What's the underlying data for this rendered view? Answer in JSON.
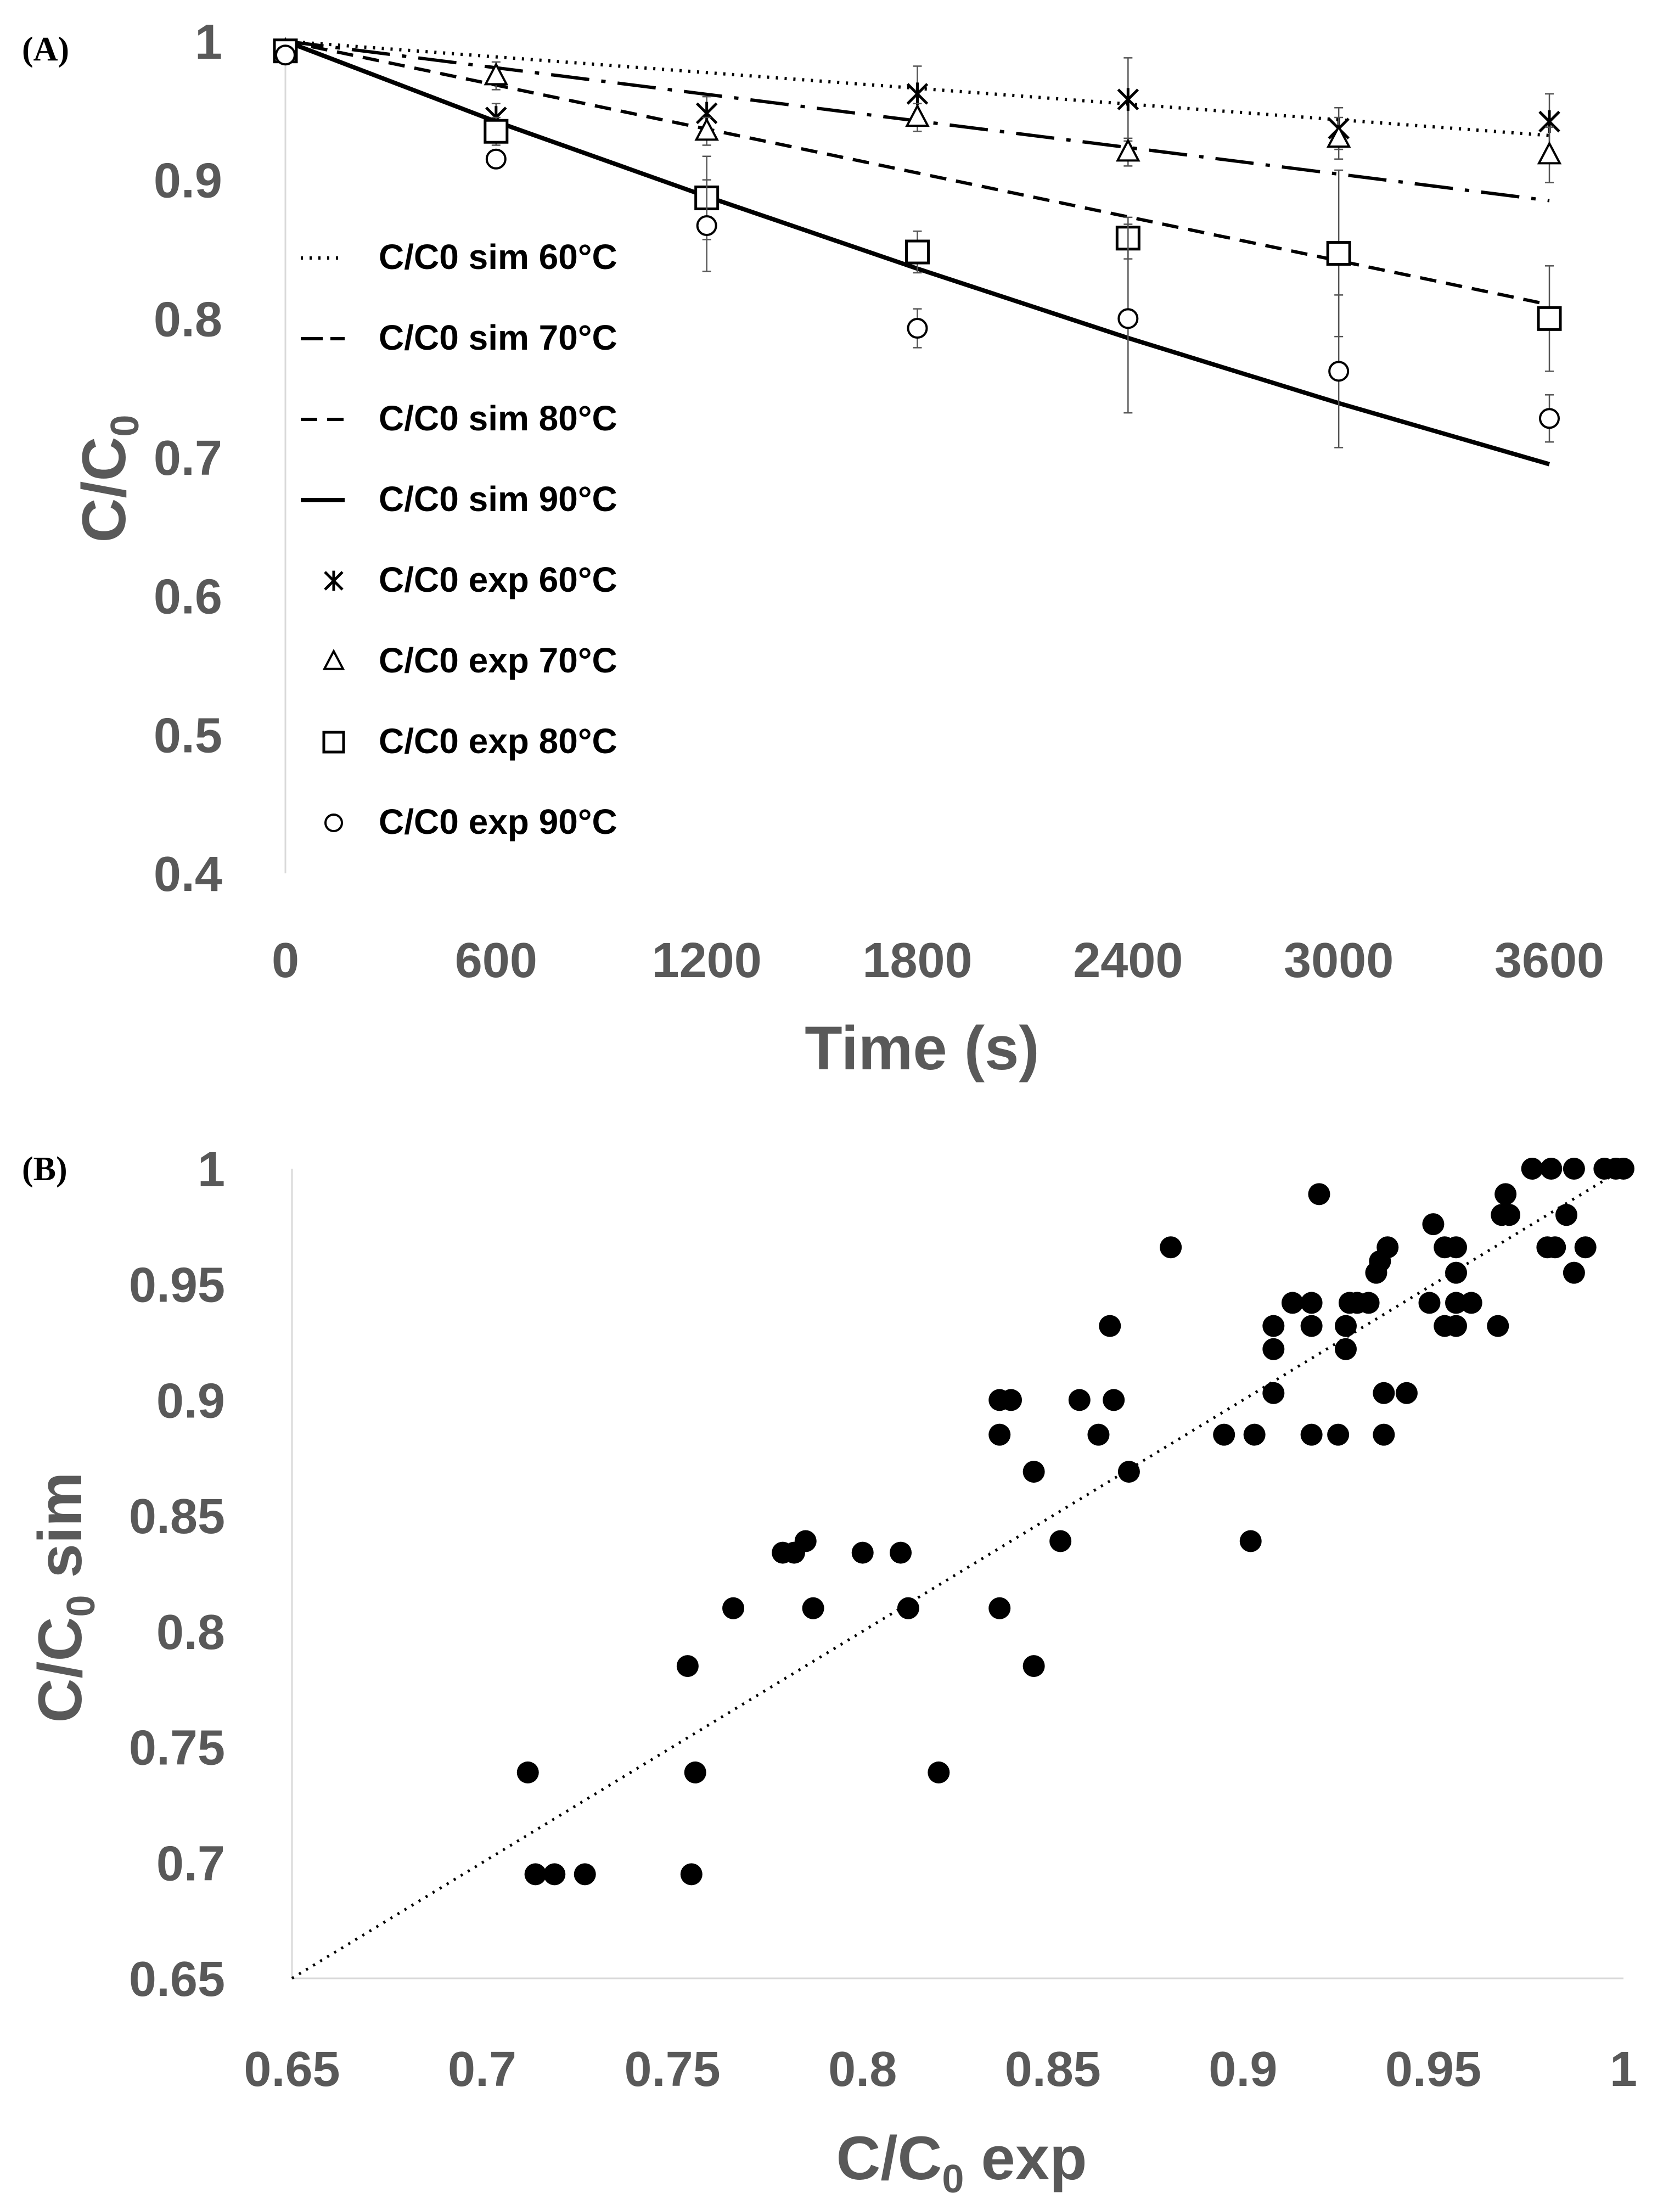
{
  "chart_data": [
    {
      "panel": "(A)",
      "type": "line",
      "xlabel": "Time (s)",
      "ylabel": "C/C0",
      "xlim": [
        0,
        3600
      ],
      "ylim": [
        0.4,
        1
      ],
      "x_ticks": [
        0,
        600,
        1200,
        1800,
        2400,
        3000,
        3600
      ],
      "y_ticks": [
        0.4,
        0.5,
        0.6,
        0.7,
        0.8,
        0.9,
        1
      ],
      "y_tick_labels": [
        "0.4",
        "0.5",
        "0.6",
        "0.7",
        "0.8",
        "0.9",
        "1"
      ],
      "x_tick_labels": [
        "0",
        "600",
        "1200",
        "1800",
        "2400",
        "3000",
        "3600"
      ],
      "legend_position": "left",
      "series": [
        {
          "name": "C/C0 sim 60°C",
          "kind": "line",
          "style": "dotted",
          "x": [
            0,
            3600
          ],
          "values": [
            1.0,
            0.932
          ]
        },
        {
          "name": "C/C0 sim 70°C",
          "kind": "line",
          "style": "dashdot",
          "x": [
            0,
            3600
          ],
          "values": [
            1.0,
            0.885
          ]
        },
        {
          "name": "C/C0 sim 80°C",
          "kind": "line",
          "style": "dashed",
          "x": [
            0,
            3600
          ],
          "values": [
            1.0,
            0.81
          ]
        },
        {
          "name": "C/C0 sim 90°C",
          "kind": "line",
          "style": "solid",
          "x": [
            0,
            600,
            1200,
            1800,
            2400,
            3000,
            3600
          ],
          "values": [
            1.0,
            0.942,
            0.888,
            0.836,
            0.786,
            0.739,
            0.695
          ]
        },
        {
          "name": "C/C0 exp 60°C",
          "kind": "marker",
          "marker": "asterisk",
          "x": [
            0,
            600,
            1200,
            1800,
            2400,
            3000,
            3600
          ],
          "values": [
            0.993,
            0.945,
            0.948,
            0.962,
            0.958,
            0.937,
            0.942
          ],
          "err": [
            0.005,
            0.01,
            0.012,
            0.02,
            0.03,
            0.015,
            0.02
          ]
        },
        {
          "name": "C/C0 exp 70°C",
          "kind": "marker",
          "marker": "triangle",
          "x": [
            0,
            600,
            1200,
            1800,
            2400,
            3000,
            3600
          ],
          "values": [
            0.993,
            0.975,
            0.935,
            0.945,
            0.92,
            0.93,
            0.918
          ],
          "err": [
            0.004,
            0.01,
            0.01,
            0.01,
            0.01,
            0.015,
            0.02
          ]
        },
        {
          "name": "C/C0 exp 80°C",
          "kind": "marker",
          "marker": "square",
          "x": [
            0,
            600,
            1200,
            1800,
            2400,
            3000,
            3600
          ],
          "values": [
            0.993,
            0.935,
            0.887,
            0.848,
            0.858,
            0.847,
            0.8
          ],
          "err": [
            0.005,
            0.01,
            0.03,
            0.015,
            0.015,
            0.06,
            0.038
          ]
        },
        {
          "name": "C/C0 exp 90°C",
          "kind": "marker",
          "marker": "circle",
          "x": [
            0,
            600,
            1200,
            1800,
            2400,
            3000,
            3600
          ],
          "values": [
            0.99,
            0.915,
            0.867,
            0.793,
            0.8,
            0.762,
            0.728
          ],
          "err": [
            0.006,
            0.006,
            0.033,
            0.014,
            0.068,
            0.055,
            0.017
          ]
        }
      ]
    },
    {
      "panel": "(B)",
      "type": "scatter",
      "xlabel": "C/C0 exp",
      "ylabel": "C/C0 sim",
      "xlim": [
        0.65,
        1
      ],
      "ylim": [
        0.65,
        1
      ],
      "x_ticks": [
        0.65,
        0.7,
        0.75,
        0.8,
        0.85,
        0.9,
        0.95,
        1
      ],
      "y_ticks": [
        0.65,
        0.7,
        0.75,
        0.8,
        0.85,
        0.9,
        0.95,
        1
      ],
      "tick_labels": [
        "0.65",
        "0.7",
        "0.75",
        "0.8",
        "0.85",
        "0.9",
        "0.95",
        "1"
      ],
      "reference_line": {
        "style": "dotted",
        "from": [
          0.65,
          0.65
        ],
        "to": [
          1,
          1
        ]
      },
      "points": [
        [
          0.712,
          0.739
        ],
        [
          0.714,
          0.695
        ],
        [
          0.719,
          0.695
        ],
        [
          0.727,
          0.695
        ],
        [
          0.754,
          0.785
        ],
        [
          0.756,
          0.739
        ],
        [
          0.755,
          0.695
        ],
        [
          0.766,
          0.81
        ],
        [
          0.779,
          0.834
        ],
        [
          0.782,
          0.834
        ],
        [
          0.785,
          0.839
        ],
        [
          0.787,
          0.81
        ],
        [
          0.8,
          0.834
        ],
        [
          0.81,
          0.834
        ],
        [
          0.812,
          0.81
        ],
        [
          0.82,
          0.739
        ],
        [
          0.836,
          0.9
        ],
        [
          0.839,
          0.9
        ],
        [
          0.836,
          0.885
        ],
        [
          0.836,
          0.81
        ],
        [
          0.845,
          0.869
        ],
        [
          0.845,
          0.785
        ],
        [
          0.852,
          0.839
        ],
        [
          0.857,
          0.9
        ],
        [
          0.862,
          0.885
        ],
        [
          0.865,
          0.932
        ],
        [
          0.866,
          0.9
        ],
        [
          0.87,
          0.869
        ],
        [
          0.881,
          0.966
        ],
        [
          0.895,
          0.885
        ],
        [
          0.902,
          0.839
        ],
        [
          0.903,
          0.885
        ],
        [
          0.908,
          0.932
        ],
        [
          0.908,
          0.922
        ],
        [
          0.908,
          0.903
        ],
        [
          0.913,
          0.942
        ],
        [
          0.918,
          0.942
        ],
        [
          0.918,
          0.932
        ],
        [
          0.918,
          0.885
        ],
        [
          0.92,
          0.989
        ],
        [
          0.925,
          0.885
        ],
        [
          0.927,
          0.932
        ],
        [
          0.927,
          0.922
        ],
        [
          0.928,
          0.942
        ],
        [
          0.93,
          0.942
        ],
        [
          0.933,
          0.942
        ],
        [
          0.935,
          0.955
        ],
        [
          0.936,
          0.96
        ],
        [
          0.937,
          0.903
        ],
        [
          0.937,
          0.885
        ],
        [
          0.938,
          0.966
        ],
        [
          0.943,
          0.903
        ],
        [
          0.949,
          0.942
        ],
        [
          0.95,
          0.976
        ],
        [
          0.953,
          0.932
        ],
        [
          0.953,
          0.966
        ],
        [
          0.956,
          0.966
        ],
        [
          0.956,
          0.955
        ],
        [
          0.956,
          0.942
        ],
        [
          0.956,
          0.932
        ],
        [
          0.96,
          0.942
        ],
        [
          0.967,
          0.932
        ],
        [
          0.968,
          0.98
        ],
        [
          0.969,
          0.989
        ],
        [
          0.97,
          0.98
        ],
        [
          0.976,
          1.0
        ],
        [
          0.98,
          0.966
        ],
        [
          0.981,
          1.0
        ],
        [
          0.982,
          0.966
        ],
        [
          0.985,
          0.98
        ],
        [
          0.987,
          1.0
        ],
        [
          0.987,
          0.955
        ],
        [
          0.99,
          0.966
        ],
        [
          0.995,
          1.0
        ],
        [
          0.998,
          1.0
        ],
        [
          1.0,
          1.0
        ]
      ]
    }
  ]
}
